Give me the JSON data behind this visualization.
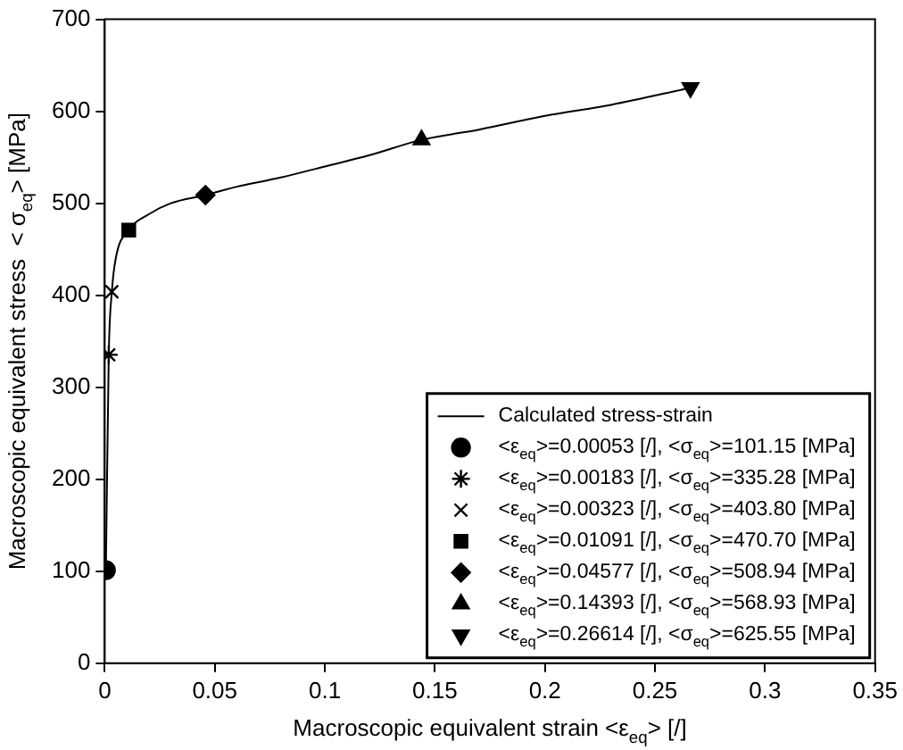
{
  "chart_data": {
    "type": "line",
    "xlabel": "Macroscopic equivalent strain <ε$_{eq}$> [/]",
    "ylabel": "Macroscopic equivalent stress  < σ$_{eq}$> [MPa]",
    "xlim": [
      0,
      0.35
    ],
    "xticks": [
      0,
      0.05,
      0.1,
      0.15,
      0.2,
      0.25,
      0.3,
      0.35
    ],
    "ylim": [
      0,
      700
    ],
    "yticks": [
      0,
      100,
      200,
      300,
      400,
      500,
      600,
      700
    ],
    "grid": false,
    "legend": "bottom right",
    "line_style": "solid",
    "series": [
      {
        "name": "Calculated stress-strain",
        "color": "#000000",
        "x": [
          0.00053,
          0.00183,
          0.00323,
          0.005,
          0.01091,
          0.02,
          0.03,
          0.04577,
          0.06,
          0.08,
          0.1,
          0.12,
          0.14393,
          0.17,
          0.2,
          0.23,
          0.26614
        ],
        "values": [
          101.15,
          335.28,
          403.8,
          440,
          470.7,
          488,
          500,
          508.94,
          518,
          528,
          540,
          552,
          568.93,
          580,
          595,
          607,
          625.55
        ]
      },
      {
        "name": "<ε$_{eq}$>=0.00053 [/], <σ$_{eq}$>=101.15 [MPa]",
        "type": "scatter",
        "marker": "circle",
        "color": "#000000",
        "x": [
          0.00053
        ],
        "values": [
          101.15
        ]
      },
      {
        "name": "<ε$_{eq}$>=0.00183 [/], <σ$_{eq}$>=335.28 [MPa]",
        "type": "scatter",
        "color": "#000000",
        "x": [
          0.00183
        ],
        "values": [
          335.28
        ]
      },
      {
        "name": "<ε$_{eq}$>=0.00323 [/], <σ$_{eq}$>=403.80 [MPa]",
        "type": "scatter",
        "marker": "cross",
        "color": "#000000",
        "x": [
          0.00323
        ],
        "values": [
          403.8
        ]
      },
      {
        "name": "<ε$_{eq}$>=0.01091 [/], <σ$_{eq}$>=470.70 [MPa]",
        "type": "scatter",
        "marker": "square",
        "color": "#000000",
        "x": [
          0.01091
        ],
        "values": [
          470.7
        ]
      },
      {
        "name": "<ε$_{eq}$>=0.04577 [/], <σ$_{eq}$>=508.94 [MPa]",
        "type": "scatter",
        "marker": "diamond",
        "color": "#000000",
        "x": [
          0.04577
        ],
        "values": [
          508.94
        ]
      },
      {
        "name": "<ε$_{eq}$>=0.14393 [/], <σ$_{eq}$>=568.93 [MPa]",
        "type": "scatter",
        "marker": "triangle",
        "color": "#000000",
        "x": [
          0.14393
        ],
        "values": [
          568.93
        ]
      },
      {
        "name": "<ε$_{eq}$>=0.26614 [/], <σ$_{eq}$>=625.55 [MPa]",
        "type": "scatter",
        "marker": "triangle-down",
        "color": "#000000",
        "x": [
          0.26614
        ],
        "values": [
          625.55
        ]
      }
    ]
  }
}
